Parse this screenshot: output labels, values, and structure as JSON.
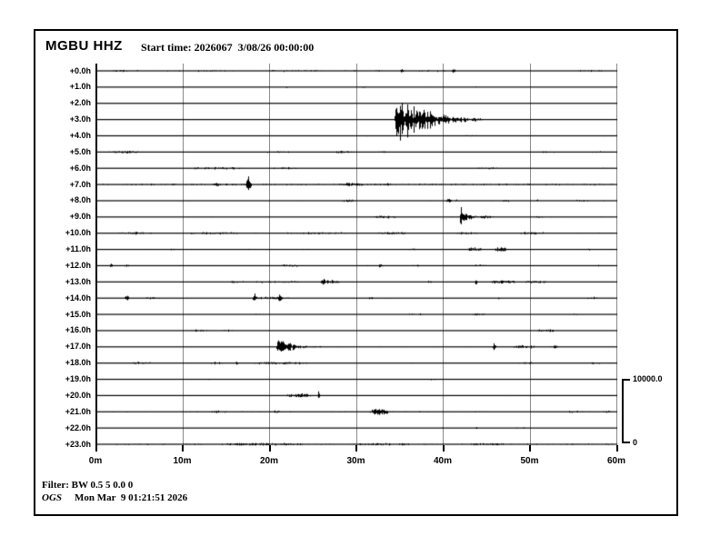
{
  "header": {
    "station": "MGBU HHZ",
    "start_time": "Start time: 2026067  3/08/26 00:00:00"
  },
  "x_axis": {
    "ticks": [
      "0m",
      "10m",
      "20m",
      "30m",
      "40m",
      "50m",
      "60m"
    ]
  },
  "scale_bar": {
    "max": "10000.0",
    "min": "0"
  },
  "footer": {
    "filter": "Filter: BW 0.5 5 0.0 0",
    "agency": "OGS",
    "timestamp": "Mon Mar  9 01:21:51 2026"
  },
  "colors": {
    "trace": "#000000",
    "grid": "#8a8a8a",
    "frame": "#000000",
    "background": "#ffffff"
  },
  "chart_data": {
    "type": "helicorder",
    "station": "MGBU",
    "channel": "HHZ",
    "start_time": "2026067 3/08/26 00:00:00",
    "minutes_per_row": 60,
    "rows_hours": 24,
    "amplitude_scale": {
      "max": 10000.0,
      "min": 0
    },
    "x_tick_minutes": [
      0,
      10,
      20,
      30,
      40,
      50,
      60
    ],
    "rows": [
      {
        "label": "+0.0h",
        "noise": 0.45,
        "density": 0.45,
        "events": [
          {
            "type": "blob",
            "t": 0.5,
            "w": 5,
            "a": 0.9
          },
          {
            "type": "blob",
            "t": 8,
            "w": 8,
            "a": 0.6
          },
          {
            "type": "blob",
            "t": 18.5,
            "w": 8,
            "a": 0.7
          },
          {
            "type": "blob",
            "t": 28,
            "w": 6,
            "a": 0.6
          },
          {
            "type": "spike",
            "t": 35.3,
            "w": 0.3,
            "a": 3
          },
          {
            "type": "blob",
            "t": 36.5,
            "w": 4,
            "a": 0.7
          },
          {
            "type": "spike",
            "t": 41.2,
            "w": 0.25,
            "a": 4.5
          },
          {
            "type": "blob",
            "t": 55,
            "w": 4,
            "a": 0.6
          }
        ]
      },
      {
        "label": "+1.0h",
        "noise": 0.3,
        "density": 0.2,
        "events": [
          {
            "type": "blob",
            "t": 17.8,
            "w": 1.2,
            "a": 0.9
          },
          {
            "type": "blob",
            "t": 21.5,
            "w": 1,
            "a": 0.8
          },
          {
            "type": "blob",
            "t": 30.5,
            "w": 0.8,
            "a": 0.8
          },
          {
            "type": "blob",
            "t": 38,
            "w": 0.8,
            "a": 0.8
          },
          {
            "type": "blob",
            "t": 43.5,
            "w": 1.2,
            "a": 0.7
          }
        ]
      },
      {
        "label": "+2.0h",
        "noise": 0.27,
        "density": 0.15,
        "events": [
          {
            "type": "blob",
            "t": 32.5,
            "w": 0.8,
            "a": 0.8
          },
          {
            "type": "blob",
            "t": 40,
            "w": 1,
            "a": 0.8
          },
          {
            "type": "blob",
            "t": 44.8,
            "w": 0.7,
            "a": 0.7
          }
        ]
      },
      {
        "label": "+3.0h",
        "noise": 0.3,
        "density": 0.2,
        "events": [
          {
            "type": "blob",
            "t": 8,
            "w": 1,
            "a": 0.6
          },
          {
            "type": "blob",
            "t": 15,
            "w": 1,
            "a": 0.6
          },
          {
            "type": "quake",
            "t": 34.35,
            "w": 10.2,
            "a": 36
          },
          {
            "type": "blob",
            "t": 50,
            "w": 2,
            "a": 0.5
          }
        ]
      },
      {
        "label": "+4.0h",
        "noise": 0.3,
        "density": 0.2,
        "events": [
          {
            "type": "blob",
            "t": 31,
            "w": 1,
            "a": 0.6
          },
          {
            "type": "blob",
            "t": 41.3,
            "w": 2.6,
            "a": 0.9
          },
          {
            "type": "blob",
            "t": 57.8,
            "w": 1.6,
            "a": 0.8
          }
        ]
      },
      {
        "label": "+5.0h",
        "noise": 0.42,
        "density": 0.4,
        "events": [
          {
            "type": "blob",
            "t": 1.3,
            "w": 3.8,
            "a": 1.5
          },
          {
            "type": "blob",
            "t": 19.5,
            "w": 3,
            "a": 0.7
          },
          {
            "type": "blob",
            "t": 27.4,
            "w": 2.2,
            "a": 1.5
          },
          {
            "type": "blob",
            "t": 32.6,
            "w": 0.9,
            "a": 1.3
          },
          {
            "type": "blob",
            "t": 51.3,
            "w": 2,
            "a": 0.8
          },
          {
            "type": "blob",
            "t": 56.8,
            "w": 2,
            "a": 0.7
          }
        ]
      },
      {
        "label": "+6.0h",
        "noise": 0.38,
        "density": 0.3,
        "events": [
          {
            "type": "blob",
            "t": 11,
            "w": 6.3,
            "a": 1.4
          },
          {
            "type": "blob",
            "t": 20.1,
            "w": 3.4,
            "a": 1.3
          },
          {
            "type": "blob",
            "t": 43.2,
            "w": 3.5,
            "a": 0.9
          },
          {
            "type": "blob",
            "t": 57.3,
            "w": 1.8,
            "a": 0.8
          }
        ]
      },
      {
        "label": "+7.0h",
        "noise": 0.75,
        "density": 0.85,
        "events": [
          {
            "type": "blob",
            "t": 13.4,
            "w": 0.9,
            "a": 1.3
          },
          {
            "type": "spike",
            "t": 17.6,
            "w": 0.35,
            "a": 14
          },
          {
            "type": "blob",
            "t": 27.9,
            "w": 3,
            "a": 1.2
          },
          {
            "type": "blob",
            "t": 33,
            "w": 1,
            "a": 1
          }
        ]
      },
      {
        "label": "+8.0h",
        "noise": 0.48,
        "density": 0.35,
        "events": [
          {
            "type": "blob",
            "t": 27.8,
            "w": 2.4,
            "a": 1.4
          },
          {
            "type": "spike",
            "t": 40.6,
            "w": 0.3,
            "a": 3
          },
          {
            "type": "blob",
            "t": 40.3,
            "w": 1.8,
            "a": 1.1
          },
          {
            "type": "blob",
            "t": 46.7,
            "w": 1.1,
            "a": 1.5
          },
          {
            "type": "blob",
            "t": 50.5,
            "w": 0.8,
            "a": 1.2
          },
          {
            "type": "blob",
            "t": 55,
            "w": 2,
            "a": 0.7
          }
        ]
      },
      {
        "label": "+9.0h",
        "noise": 0.48,
        "density": 0.35,
        "events": [
          {
            "type": "blob",
            "t": 32,
            "w": 2.8,
            "a": 1.7
          },
          {
            "type": "burst",
            "t": 41.9,
            "w": 3.4,
            "a": 17
          },
          {
            "type": "blob",
            "t": 44.2,
            "w": 1.6,
            "a": 1.6
          },
          {
            "type": "blob",
            "t": 50.7,
            "w": 0.9,
            "a": 1.2
          }
        ]
      },
      {
        "label": "+10.0h",
        "noise": 0.5,
        "density": 0.55,
        "events": [
          {
            "type": "blob",
            "t": 2.3,
            "w": 4.2,
            "a": 1.1
          },
          {
            "type": "blob",
            "t": 10.5,
            "w": 6.5,
            "a": 1.1
          },
          {
            "type": "blob",
            "t": 21,
            "w": 8,
            "a": 0.9
          },
          {
            "type": "blob",
            "t": 32.4,
            "w": 3.4,
            "a": 1.3
          },
          {
            "type": "blob",
            "t": 41,
            "w": 3,
            "a": 1.1
          },
          {
            "type": "blob",
            "t": 48.5,
            "w": 3.5,
            "a": 1.1
          }
        ]
      },
      {
        "label": "+11.0h",
        "noise": 0.48,
        "density": 0.4,
        "events": [
          {
            "type": "blob",
            "t": 8.5,
            "w": 1,
            "a": 0.9
          },
          {
            "type": "blob",
            "t": 36,
            "w": 1,
            "a": 1.1
          },
          {
            "type": "blob",
            "t": 42.7,
            "w": 1.8,
            "a": 2.2
          },
          {
            "type": "blob",
            "t": 45.9,
            "w": 1.5,
            "a": 2.5
          },
          {
            "type": "blob",
            "t": 56.2,
            "w": 1,
            "a": 1
          }
        ]
      },
      {
        "label": "+12.0h",
        "noise": 0.48,
        "density": 0.4,
        "events": [
          {
            "type": "spike",
            "t": 1.8,
            "w": 0.3,
            "a": 2.5
          },
          {
            "type": "spike",
            "t": 3.6,
            "w": 0.3,
            "a": 2.5
          },
          {
            "type": "blob",
            "t": 20.8,
            "w": 2.6,
            "a": 1.2
          },
          {
            "type": "burst",
            "t": 32.6,
            "w": 1.9,
            "a": 4.5
          },
          {
            "type": "blob",
            "t": 36.5,
            "w": 1,
            "a": 1
          },
          {
            "type": "blob",
            "t": 43.5,
            "w": 1.5,
            "a": 1
          },
          {
            "type": "blob",
            "t": 57.3,
            "w": 1,
            "a": 0.9
          }
        ]
      },
      {
        "label": "+13.0h",
        "noise": 0.44,
        "density": 0.35,
        "events": [
          {
            "type": "blob",
            "t": 14.9,
            "w": 2.4,
            "a": 1.2
          },
          {
            "type": "blob",
            "t": 18.2,
            "w": 6,
            "a": 1
          },
          {
            "type": "spike",
            "t": 26.2,
            "w": 0.3,
            "a": 5
          },
          {
            "type": "blob",
            "t": 25.9,
            "w": 2.6,
            "a": 2
          },
          {
            "type": "blob",
            "t": 38,
            "w": 1,
            "a": 1
          },
          {
            "type": "spike",
            "t": 43.8,
            "w": 0.25,
            "a": 4
          },
          {
            "type": "blob",
            "t": 45.2,
            "w": 3.2,
            "a": 2.3
          },
          {
            "type": "blob",
            "t": 49.2,
            "w": 3,
            "a": 1.5
          }
        ]
      },
      {
        "label": "+14.0h",
        "noise": 0.44,
        "density": 0.35,
        "events": [
          {
            "type": "spike",
            "t": 3.6,
            "w": 0.3,
            "a": 4
          },
          {
            "type": "blob",
            "t": 5.5,
            "w": 2,
            "a": 1.3
          },
          {
            "type": "blob",
            "t": 17.9,
            "w": 4.4,
            "a": 1.5
          },
          {
            "type": "spike",
            "t": 18.3,
            "w": 0.3,
            "a": 5
          },
          {
            "type": "spike",
            "t": 21.2,
            "w": 0.3,
            "a": 4
          },
          {
            "type": "blob",
            "t": 31,
            "w": 1,
            "a": 0.9
          },
          {
            "type": "blob",
            "t": 46,
            "w": 1,
            "a": 1
          },
          {
            "type": "blob",
            "t": 56.4,
            "w": 1.6,
            "a": 1.1
          }
        ]
      },
      {
        "label": "+15.0h",
        "noise": 0.34,
        "density": 0.22,
        "events": [
          {
            "type": "blob",
            "t": 18.2,
            "w": 1,
            "a": 1.1
          },
          {
            "type": "blob",
            "t": 35.8,
            "w": 2.2,
            "a": 1.2
          },
          {
            "type": "blob",
            "t": 43.2,
            "w": 1.7,
            "a": 1.3
          },
          {
            "type": "blob",
            "t": 54.8,
            "w": 1.2,
            "a": 0.8
          }
        ]
      },
      {
        "label": "+16.0h",
        "noise": 0.34,
        "density": 0.22,
        "events": [
          {
            "type": "blob",
            "t": 10.8,
            "w": 2.2,
            "a": 1.2
          },
          {
            "type": "blob",
            "t": 14.2,
            "w": 1.8,
            "a": 1.1
          },
          {
            "type": "blob",
            "t": 50.5,
            "w": 2.5,
            "a": 1.7
          },
          {
            "type": "blob",
            "t": 56.8,
            "w": 1.2,
            "a": 0.8
          }
        ]
      },
      {
        "label": "+17.0h",
        "noise": 0.48,
        "density": 0.45,
        "events": [
          {
            "type": "burst",
            "t": 20.8,
            "w": 6.5,
            "a": 15
          },
          {
            "type": "spike",
            "t": 45.9,
            "w": 0.3,
            "a": 4
          },
          {
            "type": "blob",
            "t": 47.9,
            "w": 2.8,
            "a": 1.9
          },
          {
            "type": "blob",
            "t": 52.2,
            "w": 1.5,
            "a": 1.2
          }
        ]
      },
      {
        "label": "+18.0h",
        "noise": 0.44,
        "density": 0.35,
        "events": [
          {
            "type": "blob",
            "t": 4,
            "w": 2.5,
            "a": 1.4
          },
          {
            "type": "blob",
            "t": 13.1,
            "w": 1.8,
            "a": 1.2
          },
          {
            "type": "spike",
            "t": 16.2,
            "w": 0.3,
            "a": 3
          },
          {
            "type": "blob",
            "t": 17.6,
            "w": 7,
            "a": 1.4
          },
          {
            "type": "blob",
            "t": 48.4,
            "w": 2.2,
            "a": 1.2
          },
          {
            "type": "blob",
            "t": 56.8,
            "w": 1.6,
            "a": 0.9
          }
        ]
      },
      {
        "label": "+19.0h",
        "noise": 0.3,
        "density": 0.17,
        "events": [
          {
            "type": "blob",
            "t": 12.8,
            "w": 0.6,
            "a": 1
          },
          {
            "type": "blob",
            "t": 16.4,
            "w": 0.7,
            "a": 1
          },
          {
            "type": "blob",
            "t": 18.6,
            "w": 0.7,
            "a": 1
          },
          {
            "type": "blob",
            "t": 37.5,
            "w": 1.7,
            "a": 1.2
          },
          {
            "type": "blob",
            "t": 52,
            "w": 1,
            "a": 0.7
          }
        ]
      },
      {
        "label": "+20.0h",
        "noise": 0.3,
        "density": 0.17,
        "events": [
          {
            "type": "blob",
            "t": 8,
            "w": 0.6,
            "a": 0.7
          },
          {
            "type": "blob",
            "t": 21.8,
            "w": 3.1,
            "a": 2.6
          },
          {
            "type": "spike",
            "t": 25.65,
            "w": 0.2,
            "a": 7
          },
          {
            "type": "blob",
            "t": 47,
            "w": 0.8,
            "a": 0.8
          }
        ]
      },
      {
        "label": "+21.0h",
        "noise": 0.55,
        "density": 0.6,
        "events": [
          {
            "type": "blob",
            "t": 13,
            "w": 2,
            "a": 0.9
          },
          {
            "type": "blob",
            "t": 20,
            "w": 1.5,
            "a": 0.9
          },
          {
            "type": "blob",
            "t": 31.6,
            "w": 2.2,
            "a": 4
          },
          {
            "type": "blob",
            "t": 43,
            "w": 1,
            "a": 0.9
          },
          {
            "type": "blob",
            "t": 54.4,
            "w": 1.6,
            "a": 0.9
          },
          {
            "type": "blob",
            "t": 58.4,
            "w": 1,
            "a": 1
          }
        ]
      },
      {
        "label": "+22.0h",
        "noise": 0.34,
        "density": 0.25,
        "events": [
          {
            "type": "blob",
            "t": 39,
            "w": 2,
            "a": 0.7
          },
          {
            "type": "blob",
            "t": 42.5,
            "w": 2,
            "a": 0.7
          },
          {
            "type": "blob",
            "t": 47.8,
            "w": 3,
            "a": 0.6
          }
        ]
      },
      {
        "label": "+23.0h",
        "noise": 0.65,
        "density": 0.85,
        "events": [
          {
            "type": "blob",
            "t": 14,
            "w": 10,
            "a": 0.9
          },
          {
            "type": "blob",
            "t": 30,
            "w": 6,
            "a": 0.7
          },
          {
            "type": "blob",
            "t": 43,
            "w": 4,
            "a": 0.7
          }
        ]
      }
    ]
  }
}
